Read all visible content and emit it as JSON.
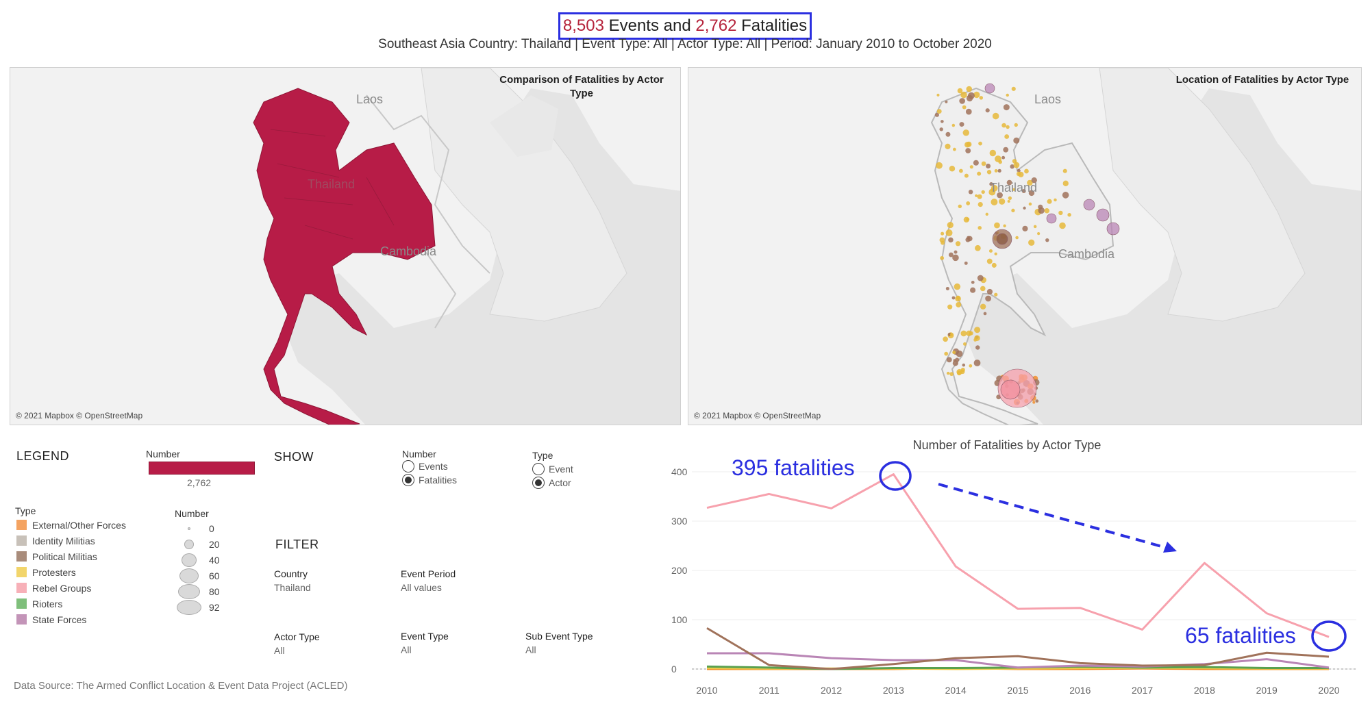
{
  "header": {
    "events_count": "8,503",
    "events_word": " Events and ",
    "fatalities_count": "2,762",
    "fatalities_word": " Fatalities",
    "subtitle": "Southeast Asia Country: Thailand | Event Type: All | Actor Type: All | Period: January 2010 to October 2020"
  },
  "maps": {
    "left_title": "Comparison of Fatalities by Actor Type",
    "right_title": "Location of Fatalities by Actor Type",
    "copyright": "© 2021 Mapbox © OpenStreetMap",
    "labels": {
      "laos": "Laos",
      "thailand": "Thailand",
      "cambodia": "Cambodia"
    },
    "fill_color": "#b71c47"
  },
  "legend": {
    "title": "LEGEND",
    "number_label": "Number",
    "number_value": "2,762",
    "type_label": "Type",
    "types": [
      {
        "name": "External/Other Forces",
        "color": "#f4a361"
      },
      {
        "name": "Identity Militias",
        "color": "#c8c1b9"
      },
      {
        "name": "Political Militias",
        "color": "#a98c7b"
      },
      {
        "name": "Protesters",
        "color": "#f2d56b"
      },
      {
        "name": "Rebel Groups",
        "color": "#f7b0b8"
      },
      {
        "name": "Rioters",
        "color": "#7fbf7b"
      },
      {
        "name": "State Forces",
        "color": "#c394b8"
      }
    ],
    "size_label": "Number",
    "sizes": [
      "0",
      "20",
      "40",
      "60",
      "80",
      "92"
    ]
  },
  "show": {
    "title": "SHOW",
    "number_label": "Number",
    "number_options": [
      "Events",
      "Fatalities"
    ],
    "number_selected": 1,
    "type_label": "Type",
    "type_options": [
      "Event",
      "Actor"
    ],
    "type_selected": 1
  },
  "filter": {
    "title": "FILTER",
    "country_label": "Country",
    "country_value": "Thailand",
    "period_label": "Event Period",
    "period_value": "All values",
    "actor_type_label": "Actor Type",
    "actor_type_value": "All",
    "event_type_label": "Event Type",
    "event_type_value": "All",
    "sub_event_type_label": "Sub Event Type",
    "sub_event_type_value": "All"
  },
  "annotations": {
    "peak": "395 fatalities",
    "end": "65 fatalities",
    "color": "#2b2fe0"
  },
  "source": "Data Source: The Armed Conflict Location & Event Data Project (ACLED)",
  "chart_data": {
    "type": "line",
    "title": "Number of Fatalities by Actor Type",
    "x": [
      2010,
      2011,
      2012,
      2013,
      2014,
      2015,
      2016,
      2017,
      2018,
      2019,
      2020
    ],
    "ylim": [
      0,
      400
    ],
    "yticks": [
      0,
      100,
      200,
      300,
      400
    ],
    "series": [
      {
        "name": "Rebel Groups",
        "color": "#f7a1ad",
        "values": [
          327,
          355,
          326,
          395,
          208,
          122,
          124,
          80,
          215,
          113,
          65
        ]
      },
      {
        "name": "Political Militias",
        "color": "#a0725a",
        "values": [
          83,
          8,
          0,
          10,
          22,
          26,
          12,
          7,
          8,
          33,
          25
        ]
      },
      {
        "name": "State Forces",
        "color": "#b985b5",
        "values": [
          32,
          32,
          22,
          18,
          18,
          3,
          7,
          5,
          10,
          20,
          3
        ]
      },
      {
        "name": "Rioters",
        "color": "#59a14f",
        "values": [
          5,
          3,
          0,
          2,
          2,
          3,
          5,
          3,
          4,
          2,
          2
        ]
      },
      {
        "name": "Protesters",
        "color": "#edc948",
        "values": [
          2,
          1,
          1,
          1,
          0,
          1,
          2,
          2,
          2,
          1,
          1
        ]
      },
      {
        "name": "External/Other Forces",
        "color": "#f28e2b",
        "values": [
          0,
          0,
          0,
          0,
          2,
          0,
          0,
          1,
          0,
          0,
          0
        ]
      }
    ]
  }
}
